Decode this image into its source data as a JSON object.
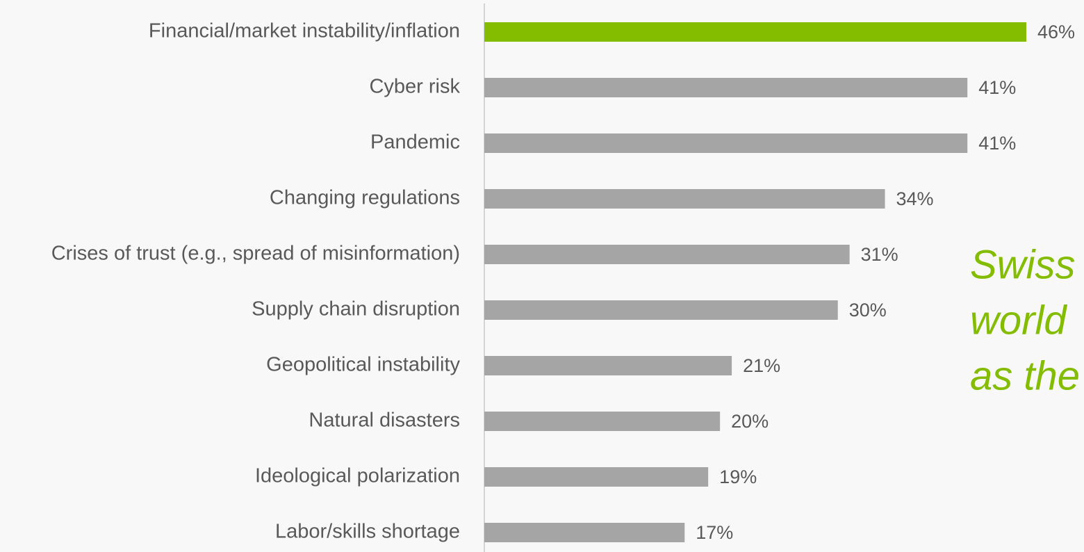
{
  "chart_data": {
    "type": "barh",
    "categories": [
      "Financial/market instability/inflation",
      "Cyber risk",
      "Pandemic",
      "Changing regulations",
      "Crises of trust (e.g., spread of misinformation)",
      "Supply chain disruption",
      "Geopolitical instability",
      "Natural disasters",
      "Ideological polarization",
      "Labor/skills shortage"
    ],
    "values": [
      46,
      41,
      41,
      34,
      31,
      30,
      21,
      20,
      19,
      17
    ],
    "value_labels": [
      "46%",
      "41%",
      "41%",
      "34%",
      "31%",
      "30%",
      "21%",
      "20%",
      "19%",
      "17%"
    ],
    "colors": [
      "#84bd00",
      "#a5a5a5",
      "#a5a5a5",
      "#a5a5a5",
      "#a5a5a5",
      "#a5a5a5",
      "#a5a5a5",
      "#a5a5a5",
      "#a5a5a5",
      "#a5a5a5"
    ],
    "annotation_lines": [
      "Swiss",
      "world",
      "as the"
    ]
  }
}
